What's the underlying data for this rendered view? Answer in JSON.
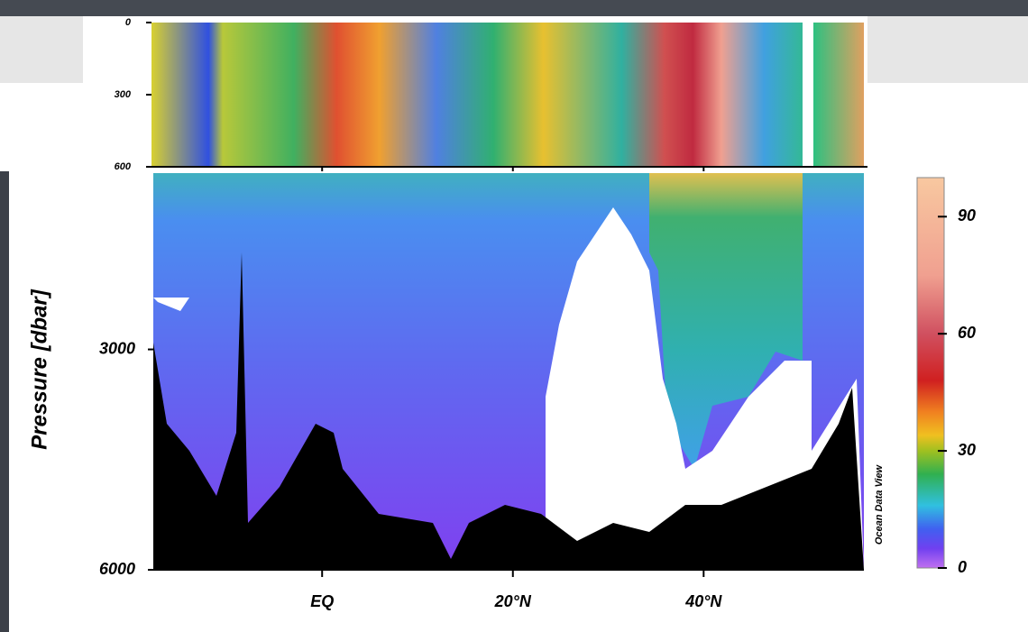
{
  "chart_data": {
    "type": "section",
    "ylabel": "Pressure [dbar]",
    "watermark": "Ocean Data View",
    "xlim": [
      -17.7,
      56.8
    ],
    "xticks": [
      {
        "value": 0,
        "label": "EQ"
      },
      {
        "value": 20,
        "label": "20°N"
      },
      {
        "value": 40,
        "label": "40°N"
      }
    ],
    "ylim": [
      600,
      6000
    ],
    "y_inverted": true,
    "yticks": [
      3000,
      6000
    ],
    "inset": {
      "ylim": [
        0,
        600
      ],
      "yticks": [
        0,
        300,
        600
      ]
    },
    "colorbar": {
      "lim": [
        0,
        100
      ],
      "ticks": [
        0,
        30,
        60,
        90
      ]
    }
  }
}
